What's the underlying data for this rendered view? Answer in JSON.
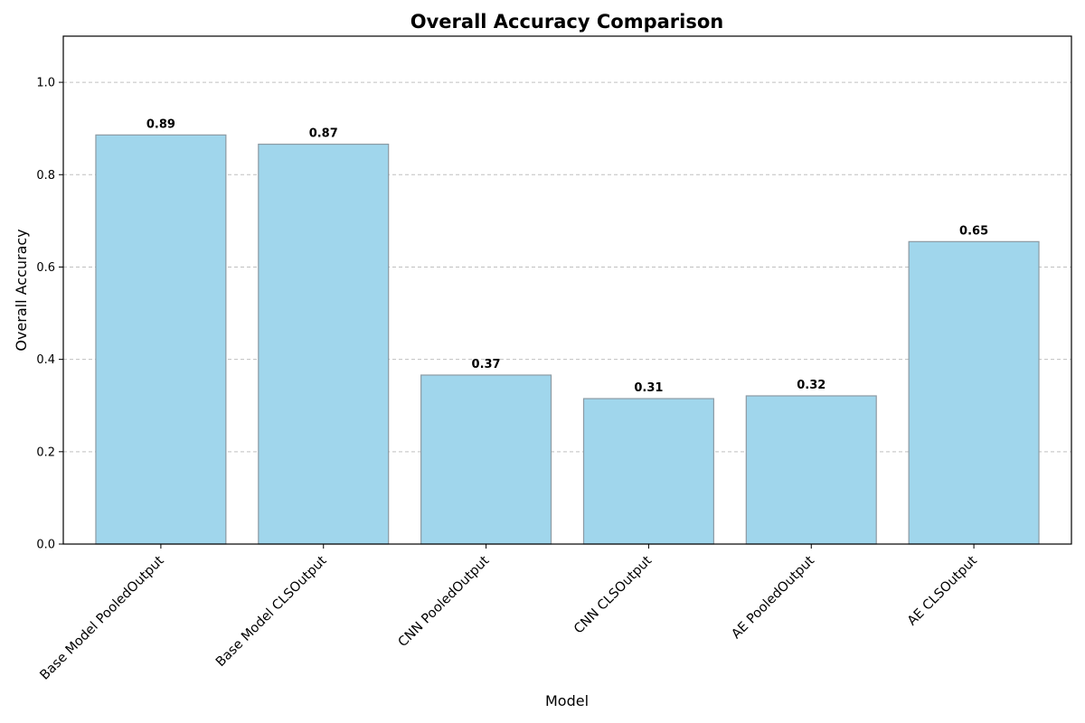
{
  "chart_data": {
    "type": "bar",
    "title": "Overall Accuracy Comparison",
    "xlabel": "Model",
    "ylabel": "Overall Accuracy",
    "categories": [
      "Base Model PooledOutput",
      "Base Model CLSOutput",
      "CNN PooledOutput",
      "CNN CLSOutput",
      "AE PooledOutput",
      "AE CLSOutput"
    ],
    "values": [
      0.886,
      0.866,
      0.366,
      0.315,
      0.321,
      0.655
    ],
    "value_labels": [
      "0.89",
      "0.87",
      "0.37",
      "0.31",
      "0.32",
      "0.65"
    ],
    "ylim": [
      0.0,
      1.1
    ],
    "yticks": [
      0.0,
      0.2,
      0.4,
      0.6,
      0.8,
      1.0
    ],
    "ytick_labels": [
      "0.0",
      "0.2",
      "0.4",
      "0.6",
      "0.8",
      "1.0"
    ],
    "grid": "y-dashed",
    "legend": "none",
    "colors": {
      "bar_fill": "#a0d6ec",
      "bar_edge": "#8c9aa3"
    }
  }
}
